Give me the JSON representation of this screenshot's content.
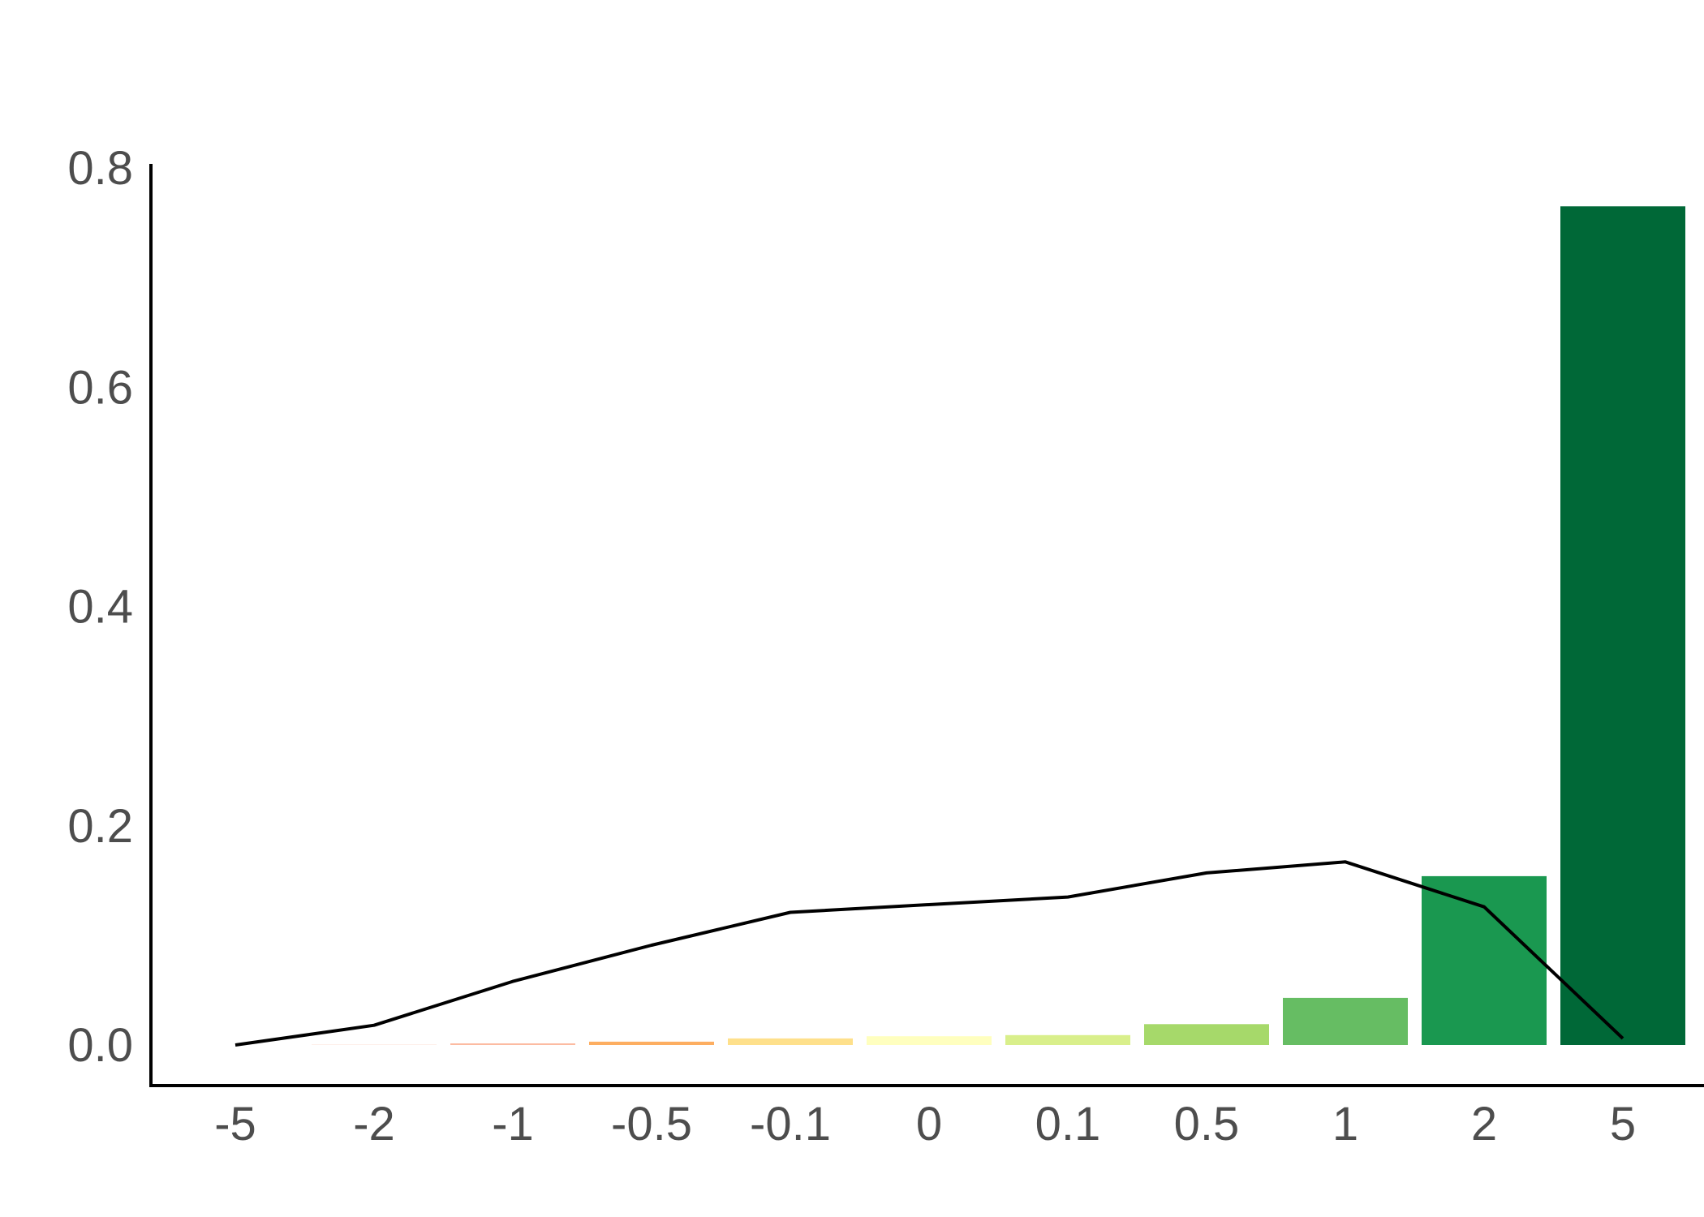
{
  "chart_data": {
    "type": "bar",
    "title": "",
    "xlabel": "",
    "ylabel": "",
    "categories": [
      "-5",
      "-2",
      "-1",
      "-0.5",
      "-0.1",
      "0",
      "0.1",
      "0.5",
      "1",
      "2",
      "5"
    ],
    "ylim": [
      0,
      0.8
    ],
    "yticks": [
      "0.0",
      "0.2",
      "0.4",
      "0.6",
      "0.8"
    ],
    "ytick_values": [
      0,
      0.2,
      0.4,
      0.6,
      0.8
    ],
    "grid": false,
    "legend": "none",
    "series": [
      {
        "type": "bar",
        "values": [
          0,
          0.0005,
          0.0015,
          0.003,
          0.006,
          0.008,
          0.009,
          0.019,
          0.043,
          0.154,
          0.765
        ],
        "colors": [
          "#d7301f",
          "#fee8e0",
          "#fcbba1",
          "#fdae61",
          "#fee08b",
          "#ffffbf",
          "#d9ef8b",
          "#a6d96a",
          "#66bd63",
          "#1a9850",
          "#006837"
        ]
      },
      {
        "type": "line",
        "values": [
          0,
          0.018,
          0.058,
          0.091,
          0.121,
          0.128,
          0.135,
          0.157,
          0.167,
          0.126,
          0.006
        ],
        "color": "#000000"
      }
    ]
  }
}
